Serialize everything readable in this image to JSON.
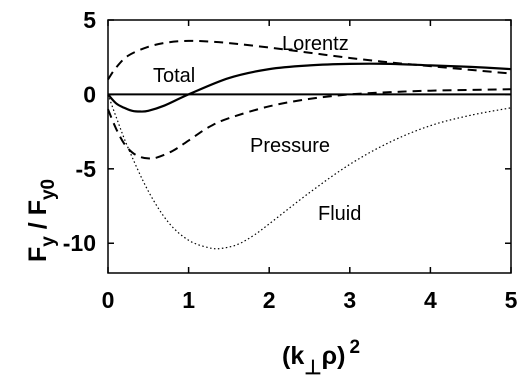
{
  "chart_data": {
    "type": "line",
    "xlim": [
      0,
      5
    ],
    "ylim": [
      -12,
      5
    ],
    "x_ticks": [
      "0",
      "1",
      "2",
      "3",
      "4",
      "5"
    ],
    "y_ticks": [
      "5",
      "0",
      "-5",
      "-10"
    ],
    "xlabel": {
      "main": "(k",
      "sub": "⊥",
      "after": "ρ)",
      "sup": "2"
    },
    "ylabel": {
      "f1": "F",
      "sub1": "y",
      "sep": " / ",
      "f2": "F",
      "sub2": "y0"
    },
    "grid": false,
    "series": [
      {
        "name": "Lorentz",
        "style": "dashed",
        "x": [
          0,
          0.1,
          0.25,
          0.5,
          0.75,
          1.0,
          1.25,
          1.5,
          2.0,
          2.5,
          3.0,
          3.5,
          4.0,
          4.5,
          5.0
        ],
        "y": [
          1.0,
          1.8,
          2.6,
          3.2,
          3.5,
          3.6,
          3.55,
          3.45,
          3.15,
          2.8,
          2.45,
          2.15,
          1.9,
          1.65,
          1.4
        ]
      },
      {
        "name": "Total",
        "style": "solid",
        "x": [
          0,
          0.1,
          0.2,
          0.3,
          0.4,
          0.5,
          0.7,
          1.0,
          1.5,
          2.0,
          2.5,
          3.0,
          3.5,
          4.0,
          4.5,
          5.0
        ],
        "y": [
          0,
          -0.6,
          -0.9,
          -1.1,
          -1.15,
          -1.1,
          -0.75,
          0.0,
          1.1,
          1.7,
          1.95,
          2.05,
          2.05,
          1.95,
          1.85,
          1.7
        ]
      },
      {
        "name": "Pressure",
        "style": "dashed",
        "x": [
          0,
          0.1,
          0.2,
          0.3,
          0.4,
          0.5,
          0.6,
          0.8,
          1.0,
          1.25,
          1.5,
          2.0,
          2.5,
          3.0,
          3.5,
          4.0,
          5.0
        ],
        "y": [
          -1.0,
          -2.3,
          -3.3,
          -3.9,
          -4.2,
          -4.3,
          -4.25,
          -3.8,
          -3.1,
          -2.2,
          -1.6,
          -0.8,
          -0.3,
          0.0,
          0.15,
          0.25,
          0.35
        ]
      },
      {
        "name": "Fluid",
        "style": "dotted",
        "x": [
          0,
          0.1,
          0.25,
          0.5,
          0.75,
          1.0,
          1.25,
          1.4,
          1.6,
          1.8,
          2.0,
          2.5,
          3.0,
          3.5,
          4.0,
          4.5,
          5.0
        ],
        "y": [
          0,
          -1.5,
          -3.6,
          -6.5,
          -8.6,
          -9.8,
          -10.3,
          -10.35,
          -10.1,
          -9.5,
          -8.7,
          -6.6,
          -4.7,
          -3.2,
          -2.1,
          -1.4,
          -0.9
        ]
      }
    ],
    "labels": {
      "lorentz": "Lorentz",
      "total": "Total",
      "pressure": "Pressure",
      "fluid": "Fluid"
    }
  }
}
